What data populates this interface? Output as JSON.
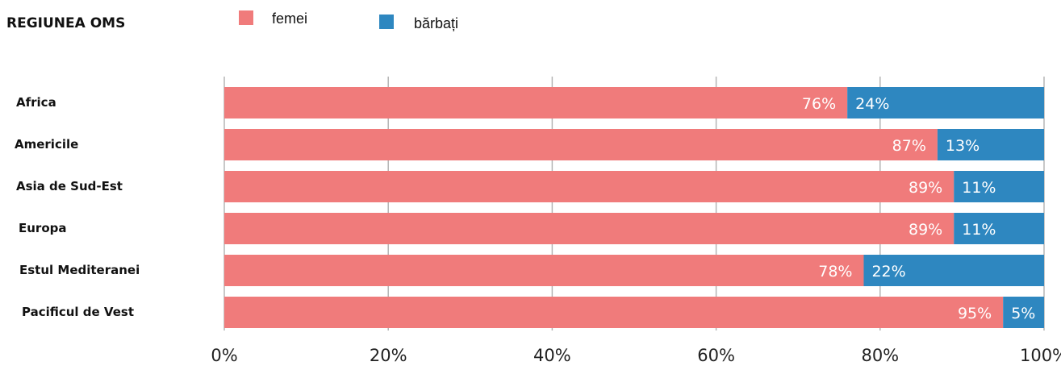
{
  "header": {
    "title": "REGIUNEA OMS"
  },
  "legend": {
    "items": [
      {
        "label": "femei",
        "color": "#f07b7b"
      },
      {
        "label": "bărbați",
        "color": "#2e87c0"
      }
    ]
  },
  "colors": {
    "women": "#f07b7b",
    "men": "#2e87c0",
    "grid": "#b5b5b5"
  },
  "chart_data": {
    "type": "bar",
    "orientation": "horizontal",
    "stacked": true,
    "title": "REGIUNEA OMS",
    "categories": [
      "Africa",
      "Americile",
      "Asia de Sud-Est",
      "Europa",
      "Estul Mediteranei",
      "Pacificul de Vest"
    ],
    "series": [
      {
        "name": "femei",
        "color": "#f07b7b",
        "values": [
          76,
          87,
          89,
          89,
          78,
          95
        ]
      },
      {
        "name": "bărbați",
        "color": "#2e87c0",
        "values": [
          24,
          13,
          11,
          11,
          22,
          5
        ]
      }
    ],
    "xlim": [
      0,
      100
    ],
    "xticks": [
      0,
      20,
      40,
      60,
      80,
      100
    ],
    "xtick_labels": [
      "0%",
      "20%",
      "40%",
      "60%",
      "80%",
      "100%"
    ],
    "grid": true,
    "legend_position": "top"
  }
}
